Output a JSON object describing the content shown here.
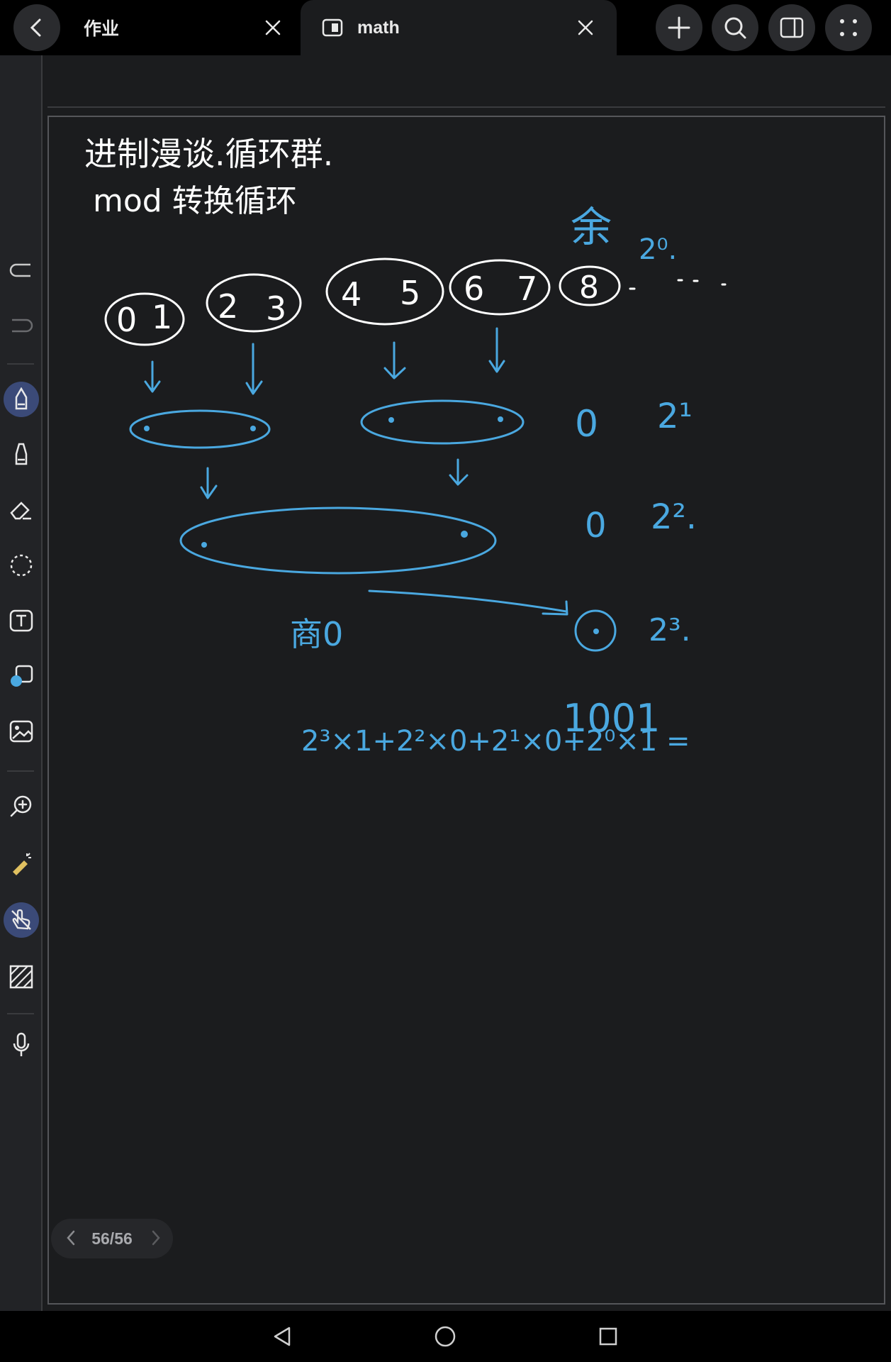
{
  "tabs": [
    {
      "label": "作业"
    },
    {
      "label": "math"
    }
  ],
  "pager": {
    "current": "56",
    "separator": "/",
    "total": "56"
  },
  "toolbar_icons": [
    "undo-icon",
    "redo-icon",
    "pen-icon",
    "highlighter-icon",
    "eraser-icon",
    "lasso-icon",
    "text-box-icon",
    "shape-icon",
    "image-icon",
    "zoom-icon",
    "laser-pointer-icon",
    "touch-draw-icon",
    "pattern-icon",
    "microphone-icon"
  ],
  "top_actions": [
    "back-icon",
    "add-icon",
    "search-icon",
    "split-view-icon",
    "more-icon"
  ],
  "colors": {
    "ink_white": "#ffffff",
    "ink_blue": "#4aa8e0",
    "background": "#1b1c1e",
    "selected_tool": "#3b4a78"
  },
  "notes": {
    "line1": "进制漫谈.循环群.",
    "line2": "mod 转换循环",
    "remainder_label": "余",
    "quotient_label": "商0",
    "formula": "2³×1+2²×0+2¹×0+2⁰×1 =",
    "result": "1001",
    "nums": [
      "0",
      "1",
      "2",
      "3",
      "4",
      "5",
      "6",
      "7",
      "8"
    ],
    "powers": [
      "2⁰.",
      "2¹",
      "2².",
      "2³."
    ],
    "remainders": [
      "0",
      "0",
      "0"
    ]
  }
}
